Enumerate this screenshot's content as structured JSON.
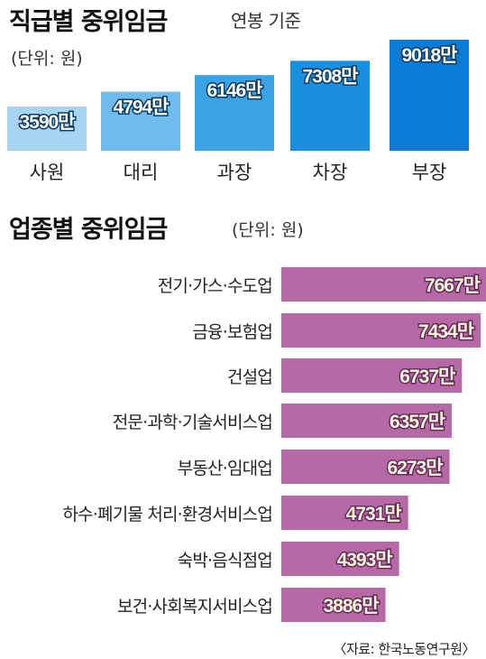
{
  "chart_data": [
    {
      "type": "bar",
      "title": "직급별 중위임금",
      "subtitle": "연봉 기준",
      "unit": "(단위: 원)",
      "categories": [
        "사원",
        "대리",
        "과장",
        "차장",
        "부장"
      ],
      "values": [
        3590,
        4794,
        6146,
        7308,
        9018
      ],
      "value_labels": [
        "3590만",
        "4794만",
        "6146만",
        "7308만",
        "9018만"
      ],
      "colors": [
        "#a8d4f2",
        "#6fbbee",
        "#3aa3e6",
        "#1a8ee0",
        "#0a7bd6"
      ]
    },
    {
      "type": "bar",
      "orientation": "horizontal",
      "title": "업종별 중위임금",
      "unit": "(단위: 원)",
      "categories": [
        "전기·가스·수도업",
        "금융·보험업",
        "건설업",
        "전문·과학·기술서비스업",
        "부동산·임대업",
        "하수·폐기물 처리·환경서비스업",
        "숙박·음식점업",
        "보건·사회복지서비스업"
      ],
      "values": [
        7667,
        7434,
        6737,
        6357,
        6273,
        4731,
        4393,
        3886
      ],
      "value_labels": [
        "7667만",
        "7434만",
        "6737만",
        "6357만",
        "6273만",
        "4731만",
        "4393만",
        "3886만"
      ],
      "color": "#b56aa6"
    }
  ],
  "source": "〈자료: 한국노동연구원〉"
}
